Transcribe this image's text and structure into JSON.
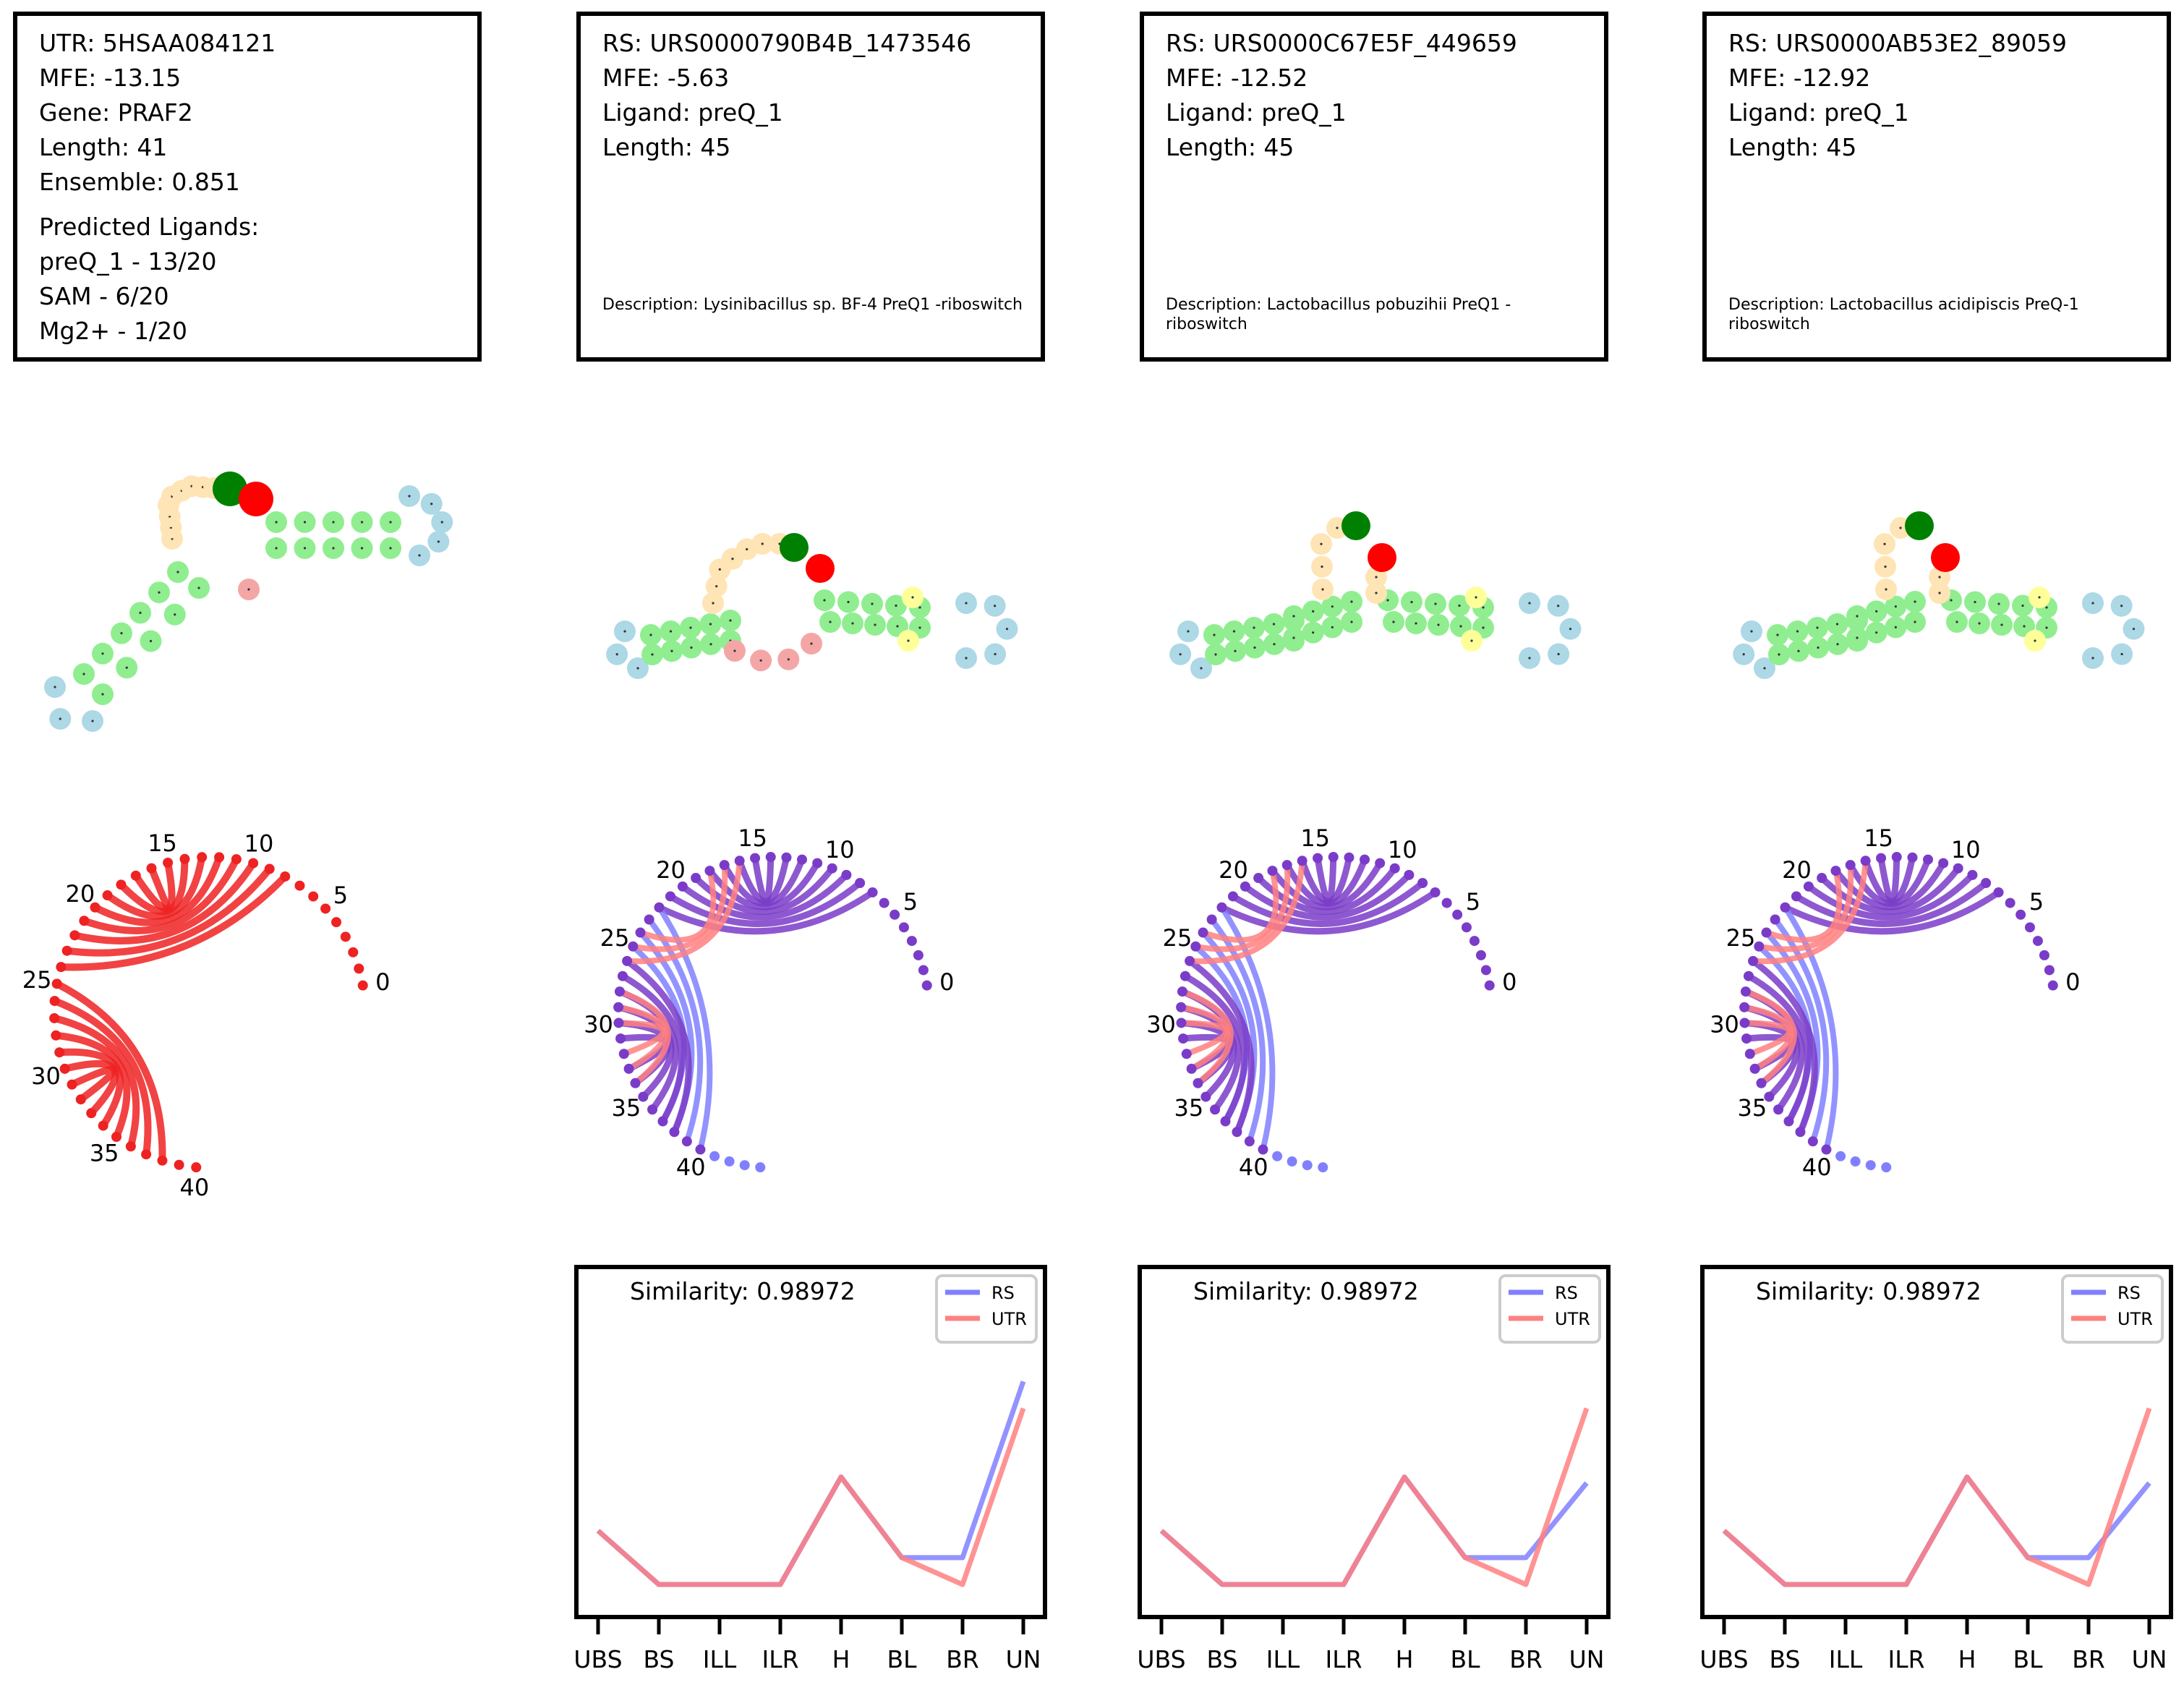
{
  "panels": [
    {
      "info": {
        "lines": [
          "UTR: 5HSAA084121",
          "MFE: -13.15",
          "Gene: PRAF2",
          "Length: 41",
          "Ensemble: 0.851"
        ],
        "extra_lines": [
          "Predicted Ligands:",
          "preQ_1 - 13/20",
          "SAM - 6/20",
          "Mg2+ - 1/20"
        ],
        "description": ""
      },
      "arc": {
        "length": 41,
        "tick_labels": [
          "0",
          "5",
          "10",
          "15",
          "20",
          "25",
          "30",
          "35",
          "40"
        ]
      }
    },
    {
      "info": {
        "lines": [
          "RS: URS0000790B4B_1473546",
          "MFE: -5.63",
          "Ligand: preQ_1",
          "Length: 45"
        ],
        "extra_lines": [],
        "description": "Description: Lysinibacillus sp. BF-4 PreQ1 -riboswitch"
      },
      "arc": {
        "length": 45,
        "tick_labels": [
          "0",
          "5",
          "10",
          "15",
          "20",
          "25",
          "30",
          "35",
          "40"
        ]
      }
    },
    {
      "info": {
        "lines": [
          "RS: URS0000C67E5F_449659",
          "MFE: -12.52",
          "Ligand: preQ_1",
          "Length: 45"
        ],
        "extra_lines": [],
        "description": "Description: Lactobacillus pobuzihii PreQ1 -riboswitch"
      },
      "arc": {
        "length": 45,
        "tick_labels": [
          "0",
          "5",
          "10",
          "15",
          "20",
          "25",
          "30",
          "35",
          "40"
        ]
      }
    },
    {
      "info": {
        "lines": [
          "RS: URS0000AB53E2_89059",
          "MFE: -12.92",
          "Ligand: preQ_1",
          "Length: 45"
        ],
        "extra_lines": [],
        "description": "Description: Lactobacillus acidipiscis PreQ-1 riboswitch"
      },
      "arc": {
        "length": 45,
        "tick_labels": [
          "0",
          "5",
          "10",
          "15",
          "20",
          "25",
          "30",
          "35",
          "40"
        ]
      }
    }
  ],
  "colors": {
    "stem": "#90ee90",
    "hairpin": "#add8e6",
    "loop": "#ffe4b5",
    "bulge": "#ffff99",
    "unpaired": "#f4a6a6",
    "start": "#008000",
    "end": "#ff0000",
    "rs": "#8080ff",
    "utr": "#ff8080",
    "utr_arc": "#ee2222"
  },
  "chart_data": [
    {
      "type": "line",
      "title": "Similarity: 0.98972",
      "categories": [
        "UBS",
        "BS",
        "ILL",
        "ILR",
        "H",
        "BL",
        "BR",
        "UN"
      ],
      "series": [
        {
          "name": "RS",
          "values": [
            0.18,
            0.0,
            0.0,
            0.0,
            0.36,
            0.09,
            0.09,
            0.68
          ]
        },
        {
          "name": "UTR",
          "values": [
            0.18,
            0.0,
            0.0,
            0.0,
            0.36,
            0.09,
            0.0,
            0.59
          ]
        }
      ],
      "legend": "top-right"
    },
    {
      "type": "line",
      "title": "Similarity: 0.98972",
      "categories": [
        "UBS",
        "BS",
        "ILL",
        "ILR",
        "H",
        "BL",
        "BR",
        "UN"
      ],
      "series": [
        {
          "name": "RS",
          "values": [
            0.18,
            0.0,
            0.0,
            0.0,
            0.36,
            0.09,
            0.09,
            0.34
          ]
        },
        {
          "name": "UTR",
          "values": [
            0.18,
            0.0,
            0.0,
            0.0,
            0.36,
            0.09,
            0.0,
            0.59
          ]
        }
      ],
      "legend": "top-right"
    },
    {
      "type": "line",
      "title": "Similarity: 0.98972",
      "categories": [
        "UBS",
        "BS",
        "ILL",
        "ILR",
        "H",
        "BL",
        "BR",
        "UN"
      ],
      "series": [
        {
          "name": "RS",
          "values": [
            0.18,
            0.0,
            0.0,
            0.0,
            0.36,
            0.09,
            0.09,
            0.34
          ]
        },
        {
          "name": "UTR",
          "values": [
            0.18,
            0.0,
            0.0,
            0.0,
            0.36,
            0.09,
            0.0,
            0.59
          ]
        }
      ],
      "legend": "top-right"
    }
  ]
}
